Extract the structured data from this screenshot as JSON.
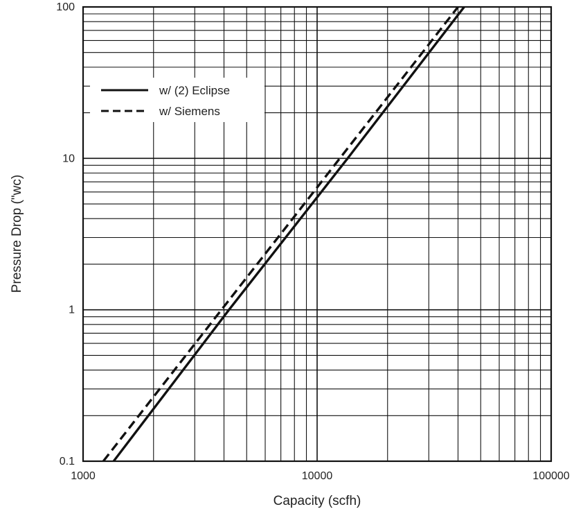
{
  "chart_data": {
    "type": "line",
    "title": "",
    "xlabel": "Capacity (scfh)",
    "ylabel": "Pressure Drop (\"wc)",
    "x_scale": "log",
    "y_scale": "log",
    "xlim": [
      1000,
      100000
    ],
    "ylim": [
      0.1,
      100
    ],
    "grid": true,
    "legend_position": "top-left",
    "x_tick_labels": [
      "1000",
      "10000",
      "100000"
    ],
    "y_tick_labels": [
      "0.1",
      "1",
      "10",
      "100"
    ],
    "series": [
      {
        "name": "w/ (2) Eclipse",
        "style": "solid",
        "color": "#111111",
        "points": [
          [
            1350,
            0.1
          ],
          [
            4200,
            1
          ],
          [
            13500,
            10
          ],
          [
            42500,
            100
          ]
        ]
      },
      {
        "name": "w/ Siemens",
        "style": "dashed",
        "color": "#111111",
        "points": [
          [
            1220,
            0.1
          ],
          [
            3900,
            1
          ],
          [
            12500,
            10
          ],
          [
            40000,
            100
          ]
        ]
      }
    ]
  }
}
